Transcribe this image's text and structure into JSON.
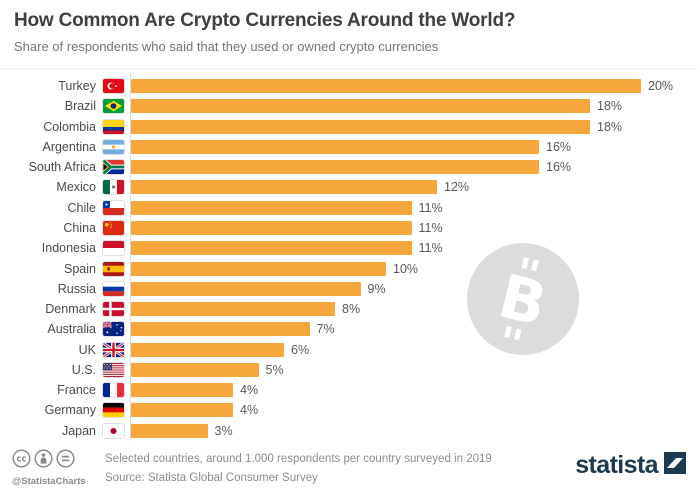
{
  "header": {
    "title": "How Common Are Crypto Currencies Around the World?",
    "subtitle": "Share of respondents who said that they used or owned crypto currencies"
  },
  "chart_data": {
    "type": "bar",
    "orientation": "horizontal",
    "title": "How Common Are Crypto Currencies Around the World?",
    "subtitle": "Share of respondents who said that they used or owned crypto currencies",
    "unit": "percent",
    "categories": [
      "Turkey",
      "Brazil",
      "Colombia",
      "Argentina",
      "South Africa",
      "Mexico",
      "Chile",
      "China",
      "Indonesia",
      "Spain",
      "Russia",
      "Denmark",
      "Australia",
      "UK",
      "U.S.",
      "France",
      "Germany",
      "Japan"
    ],
    "values": [
      20,
      18,
      18,
      16,
      16,
      12,
      11,
      11,
      11,
      10,
      9,
      8,
      7,
      6,
      5,
      4,
      4,
      3
    ],
    "labels": [
      "20%",
      "18%",
      "18%",
      "16%",
      "16%",
      "12%",
      "11%",
      "11%",
      "11%",
      "10%",
      "9%",
      "8%",
      "7%",
      "6%",
      "5%",
      "4%",
      "4%",
      "3%"
    ],
    "flags": [
      "turkey",
      "brazil",
      "colombia",
      "argentina",
      "south-africa",
      "mexico",
      "chile",
      "china",
      "indonesia",
      "spain",
      "russia",
      "denmark",
      "australia",
      "uk",
      "us",
      "france",
      "germany",
      "japan"
    ],
    "bar_color": "#F5A73B",
    "xlim": [
      0,
      20
    ],
    "grid": false,
    "legend": "none",
    "value_labels_position": "end-of-bar"
  },
  "watermark": {
    "name": "bitcoin-icon",
    "circle_color": "#DCDCDC",
    "glyph_color": "#FFFFFF"
  },
  "footer": {
    "license_icons": [
      "cc-icon",
      "attribution-icon",
      "equal-icon"
    ],
    "handle": "@StatistaCharts",
    "note": "Selected countries, around 1,000 respondents per country surveyed in 2019",
    "source": "Source: Statista Global Consumer Survey",
    "brand": "statista",
    "brand_color": "#1D3A52"
  }
}
